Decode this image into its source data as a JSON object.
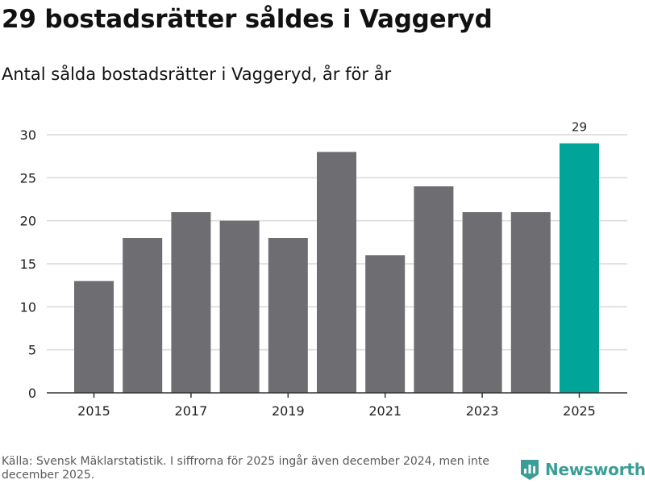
{
  "title": "29 bostadsrätter såldes i Vaggeryd",
  "subtitle": "Antal sålda bostadsrätter i Vaggeryd, år för år",
  "footer": {
    "source": "Källa: Svensk Mäklarstatistik. I siffrorna för 2025 ingår även december 2024, men inte december 2025."
  },
  "brand": {
    "name": "Newsworthy",
    "logo_icon": "newsworthy-logo-icon",
    "color": "#3a9e97"
  },
  "colors": {
    "bar": "#6e6d72",
    "highlight": "#00a499",
    "grid": "#d9d9d9",
    "axis": "#333333"
  },
  "chart_data": {
    "type": "bar",
    "title": "29 bostadsrätter såldes i Vaggeryd",
    "subtitle": "Antal sålda bostadsrätter i Vaggeryd, år för år",
    "xlabel": "",
    "ylabel": "",
    "categories": [
      2015,
      2016,
      2017,
      2018,
      2019,
      2020,
      2021,
      2022,
      2023,
      2024,
      2025
    ],
    "values": [
      13,
      18,
      21,
      20,
      18,
      28,
      16,
      24,
      21,
      21,
      29
    ],
    "highlight_index": 10,
    "data_labels": [
      {
        "index": 10,
        "text": "29"
      }
    ],
    "ylim": [
      0,
      30
    ],
    "yticks": [
      0,
      5,
      10,
      15,
      20,
      25,
      30
    ],
    "xticks": [
      "2015",
      "2017",
      "2019",
      "2021",
      "2023",
      "2025"
    ],
    "grid": true
  }
}
